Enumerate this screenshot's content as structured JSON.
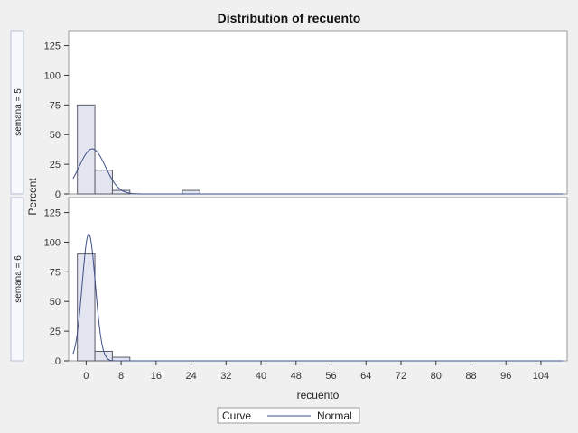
{
  "colors": {
    "page_background": "#f0f0f0",
    "panel_background": "#ffffff",
    "bar_fill": "#e3e6f1",
    "bar_stroke": "#5a5a68",
    "curve": "#3e4f8a",
    "frame": "#9a9a9a",
    "strip_background": "#f7f8fb",
    "strip_border": "#b9c0d6"
  },
  "legend": {
    "title": "Curve",
    "entry": "Normal"
  },
  "chart_data": {
    "type": "bar",
    "title": "Distribution of recuento",
    "xlabel": "recuento",
    "ylabel": "Percent",
    "xlim": [
      -4,
      110
    ],
    "ylim": [
      0,
      130
    ],
    "x_ticks": [
      0,
      8,
      16,
      24,
      32,
      40,
      48,
      56,
      64,
      72,
      80,
      88,
      96,
      104
    ],
    "y_ticks": [
      0,
      25,
      50,
      75,
      100,
      125
    ],
    "bin_width": 4,
    "grid": false,
    "legend_position": "bottom",
    "panels": [
      {
        "label": "semana = 5",
        "bins": [
          {
            "center": 0,
            "percent": 75
          },
          {
            "center": 4,
            "percent": 20
          },
          {
            "center": 8,
            "percent": 3
          },
          {
            "center": 24,
            "percent": 3
          }
        ],
        "normal": {
          "mean": 1.4,
          "sd": 3.0,
          "peak": 38
        }
      },
      {
        "label": "semana = 6",
        "bins": [
          {
            "center": 0,
            "percent": 90
          },
          {
            "center": 4,
            "percent": 8
          },
          {
            "center": 8,
            "percent": 3
          }
        ],
        "normal": {
          "mean": 0.6,
          "sd": 1.5,
          "peak": 107
        }
      }
    ]
  }
}
